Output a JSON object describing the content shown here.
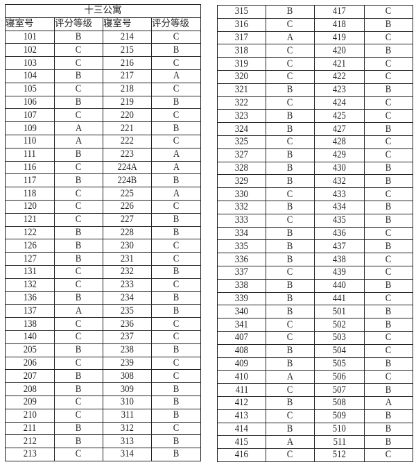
{
  "title": "十三公寓",
  "headers": [
    "寝室号",
    "评分等级",
    "寝室号",
    "评分等级"
  ],
  "left_rows": [
    [
      "101",
      "B",
      "214",
      "C"
    ],
    [
      "102",
      "C",
      "215",
      "B"
    ],
    [
      "103",
      "C",
      "216",
      "C"
    ],
    [
      "104",
      "B",
      "217",
      "A"
    ],
    [
      "105",
      "C",
      "218",
      "C"
    ],
    [
      "106",
      "B",
      "219",
      "B"
    ],
    [
      "107",
      "C",
      "220",
      "C"
    ],
    [
      "109",
      "A",
      "221",
      "B"
    ],
    [
      "110",
      "A",
      "222",
      "C"
    ],
    [
      "111",
      "B",
      "223",
      "A"
    ],
    [
      "116",
      "C",
      "224A",
      "A"
    ],
    [
      "117",
      "B",
      "224B",
      "B"
    ],
    [
      "118",
      "C",
      "225",
      "A"
    ],
    [
      "120",
      "C",
      "226",
      "C"
    ],
    [
      "121",
      "C",
      "227",
      "B"
    ],
    [
      "122",
      "B",
      "228",
      "B"
    ],
    [
      "126",
      "B",
      "230",
      "C"
    ],
    [
      "127",
      "B",
      "231",
      "C"
    ],
    [
      "131",
      "C",
      "232",
      "B"
    ],
    [
      "132",
      "C",
      "233",
      "C"
    ],
    [
      "136",
      "B",
      "234",
      "B"
    ],
    [
      "137",
      "A",
      "235",
      "B"
    ],
    [
      "138",
      "C",
      "236",
      "C"
    ],
    [
      "140",
      "C",
      "237",
      "C"
    ],
    [
      "205",
      "B",
      "238",
      "B"
    ],
    [
      "206",
      "C",
      "239",
      "C"
    ],
    [
      "207",
      "B",
      "308",
      "C"
    ],
    [
      "208",
      "B",
      "309",
      "B"
    ],
    [
      "209",
      "C",
      "310",
      "B"
    ],
    [
      "210",
      "C",
      "311",
      "B"
    ],
    [
      "211",
      "B",
      "312",
      "C"
    ],
    [
      "212",
      "B",
      "313",
      "B"
    ],
    [
      "213",
      "C",
      "314",
      "B"
    ]
  ],
  "right_rows": [
    [
      "315",
      "B",
      "417",
      "C"
    ],
    [
      "316",
      "C",
      "418",
      "B"
    ],
    [
      "317",
      "A",
      "419",
      "C"
    ],
    [
      "318",
      "C",
      "420",
      "B"
    ],
    [
      "319",
      "C",
      "421",
      "C"
    ],
    [
      "320",
      "C",
      "422",
      "C"
    ],
    [
      "321",
      "B",
      "423",
      "B"
    ],
    [
      "322",
      "C",
      "424",
      "C"
    ],
    [
      "323",
      "B",
      "425",
      "C"
    ],
    [
      "324",
      "B",
      "427",
      "B"
    ],
    [
      "325",
      "C",
      "428",
      "C"
    ],
    [
      "327",
      "B",
      "429",
      "C"
    ],
    [
      "328",
      "B",
      "430",
      "B"
    ],
    [
      "329",
      "B",
      "432",
      "B"
    ],
    [
      "330",
      "C",
      "433",
      "C"
    ],
    [
      "332",
      "B",
      "434",
      "B"
    ],
    [
      "333",
      "C",
      "435",
      "B"
    ],
    [
      "334",
      "B",
      "436",
      "C"
    ],
    [
      "335",
      "B",
      "437",
      "B"
    ],
    [
      "336",
      "B",
      "438",
      "C"
    ],
    [
      "337",
      "C",
      "439",
      "C"
    ],
    [
      "338",
      "B",
      "440",
      "B"
    ],
    [
      "339",
      "B",
      "441",
      "C"
    ],
    [
      "340",
      "B",
      "501",
      "B"
    ],
    [
      "341",
      "C",
      "502",
      "B"
    ],
    [
      "407",
      "C",
      "503",
      "C"
    ],
    [
      "408",
      "B",
      "504",
      "C"
    ],
    [
      "409",
      "B",
      "505",
      "B"
    ],
    [
      "410",
      "A",
      "506",
      "C"
    ],
    [
      "411",
      "C",
      "507",
      "B"
    ],
    [
      "412",
      "B",
      "508",
      "A"
    ],
    [
      "413",
      "C",
      "509",
      "B"
    ],
    [
      "414",
      "B",
      "510",
      "B"
    ],
    [
      "415",
      "A",
      "511",
      "B"
    ],
    [
      "416",
      "C",
      "512",
      "C"
    ]
  ]
}
